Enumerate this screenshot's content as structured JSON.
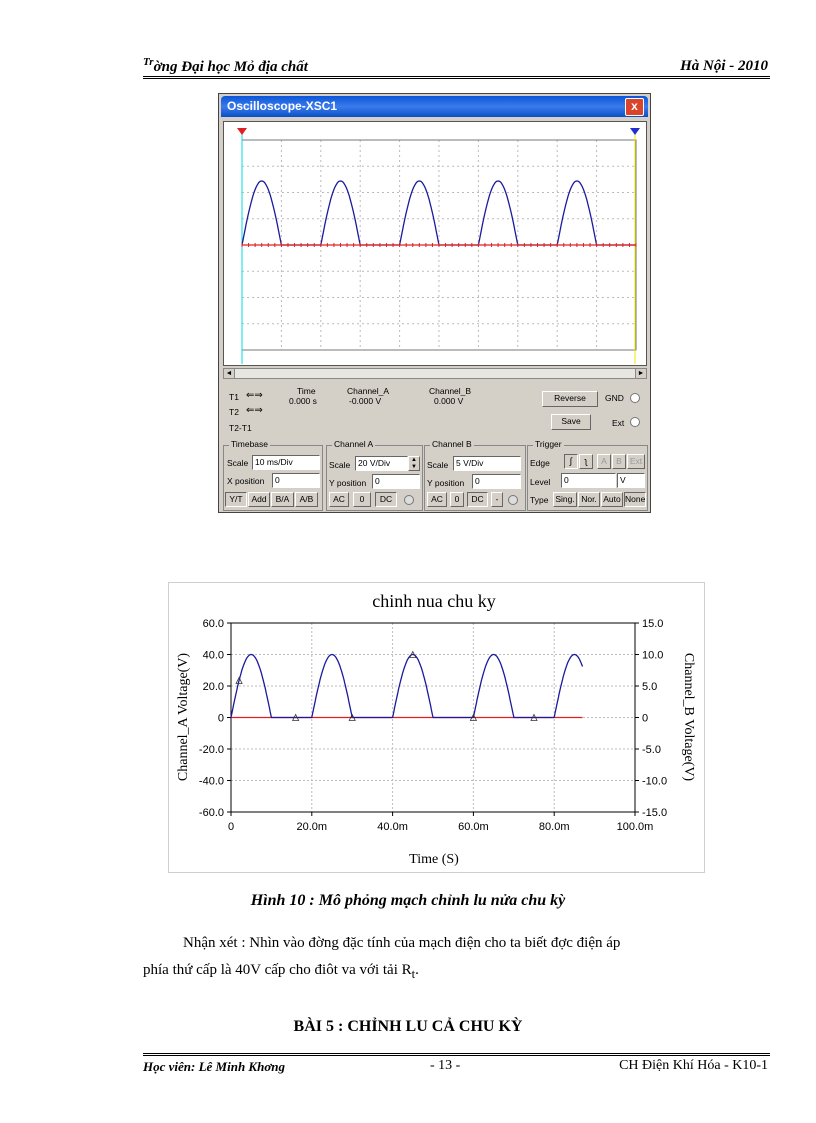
{
  "header": {
    "left_sup": "Tr",
    "left_text": "ờng   Đại học Mỏ địa chất",
    "right_text": "Hà Nội - 2010"
  },
  "oscilloscope": {
    "title": "Oscilloscope-XSC1",
    "close": "x",
    "readout": {
      "headers": [
        "Time",
        "Channel_A",
        "Channel_B"
      ],
      "t1_label": "T1",
      "t2_label": "T2",
      "t2t1_label": "T2-T1",
      "values": [
        "0.000 s",
        "-0.000 V",
        "0.000 V"
      ]
    },
    "reverse_label": "Reverse",
    "save_label": "Save",
    "gnd_label": "GND",
    "ext_label": "Ext",
    "timebase": {
      "title": "Timebase",
      "scale_label": "Scale",
      "scale_value": "10 ms/Div",
      "xpos_label": "X position",
      "xpos_value": "0",
      "buttons": [
        "Y/T",
        "Add",
        "B/A",
        "A/B"
      ]
    },
    "channel_a": {
      "title": "Channel A",
      "scale_label": "Scale",
      "scale_value": "20  V/Div",
      "ypos_label": "Y position",
      "ypos_value": "0",
      "buttons": [
        "AC",
        "0",
        "DC"
      ]
    },
    "channel_b": {
      "title": "Channel B",
      "scale_label": "Scale",
      "scale_value": "5  V/Div",
      "ypos_label": "Y position",
      "ypos_value": "0",
      "buttons": [
        "AC",
        "0",
        "DC",
        "-"
      ]
    },
    "trigger": {
      "title": "Trigger",
      "edge_label": "Edge",
      "edge_buttons": [
        "A",
        "B",
        "Ext"
      ],
      "level_label": "Level",
      "level_value": "0",
      "level_unit": "V",
      "type_label": "Type",
      "type_buttons": [
        "Sing.",
        "Nor.",
        "Auto",
        "None"
      ]
    },
    "trace": {
      "peak_ratio": 0.61,
      "cycles": 5
    }
  },
  "chart_data": {
    "type": "line",
    "title": "chinh nua chu ky",
    "xlabel": "Time (S)",
    "ylabel": "Channel_A Voltage(V)",
    "y2label": "Channel_B Voltage(V)",
    "xlim": [
      0,
      0.1
    ],
    "ylim": [
      -60,
      60
    ],
    "y2lim": [
      -15,
      15
    ],
    "xticks": [
      0,
      0.02,
      0.04,
      0.06,
      0.08,
      0.1
    ],
    "xtick_labels": [
      "0",
      "20.0m",
      "40.0m",
      "60.0m",
      "80.0m",
      "100.0m"
    ],
    "yticks": [
      -60,
      -40,
      -20,
      0,
      20,
      40,
      60
    ],
    "ytick_labels": [
      "-60.0",
      "-40.0",
      "-20.0",
      "0",
      "20.0",
      "40.0",
      "60.0"
    ],
    "y2ticks": [
      -15,
      -10,
      -5,
      0,
      5,
      10,
      15
    ],
    "y2tick_labels": [
      "-15.0",
      "-10.0",
      "-5.0",
      "0",
      "5.0",
      "10.0",
      "15.0"
    ],
    "grid": true,
    "series": [
      {
        "color": "#1a1a9e",
        "peak": 40,
        "period": 0.02,
        "half_wave": true,
        "x_end": 0.087
      },
      {
        "color": "#e02020",
        "value": 0,
        "x_end": 0.087
      }
    ],
    "markers_x": [
      0.002,
      0.016,
      0.03,
      0.045,
      0.06,
      0.075
    ]
  },
  "colors": {
    "channel_a": "#1a1a9e",
    "channel_b": "#e02020",
    "grid": "#bdbdbd"
  },
  "text": {
    "caption": "Hình 10 : Mô phỏng mạch chỉnh lu   nửa chu kỳ",
    "para_line1": "Nhận xét : Nhìn vào đờng   đặc tính của mạch điện cho ta biết đợc   điện áp",
    "para_line2": "phía thứ cấp là 40V cấp cho điôt va với tải R",
    "para_sub": "t",
    "para_end": ".",
    "section": "BÀI 5 : CHỈNH LU   CẢ CHU KỲ"
  },
  "footer": {
    "left": "Học viên: Lê Minh Khơng",
    "page": "- 13 -",
    "right": "CH Điện Khí Hóa - K10-1"
  }
}
